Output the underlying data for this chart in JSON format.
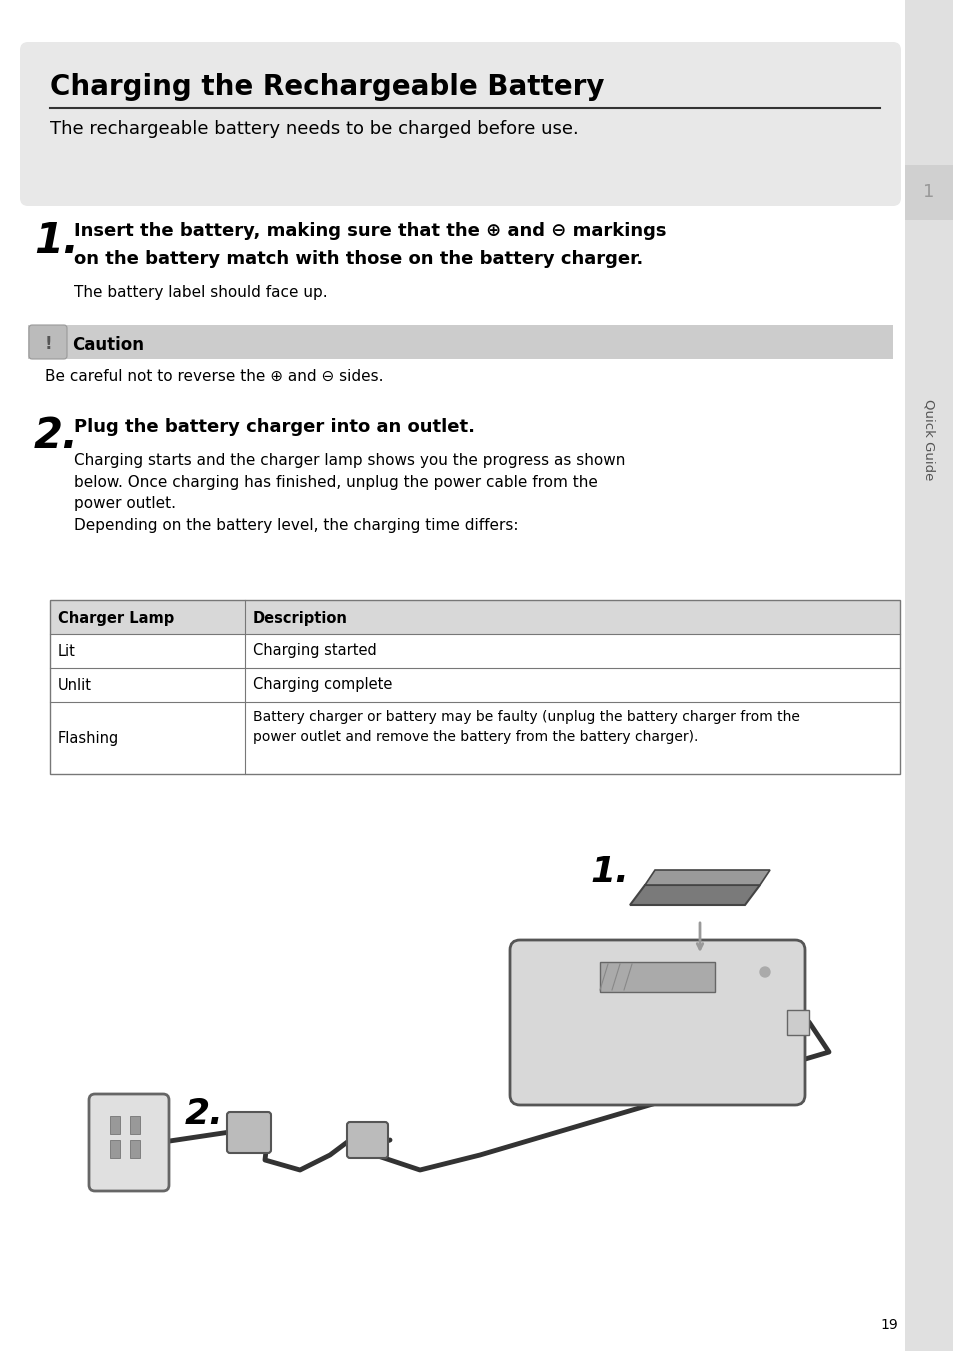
{
  "title": "Charging the Rechargeable Battery",
  "subtitle": "The rechargeable battery needs to be charged before use.",
  "step1_num": "1.",
  "step1_bold_line1": "Insert the battery, making sure that the ⊕ and ⊖ markings",
  "step1_bold_line2": "on the battery match with those on the battery charger.",
  "step1_sub": "The battery label should face up.",
  "caution_title": "Caution",
  "caution_text": "Be careful not to reverse the ⊕ and ⊖ sides.",
  "step2_num": "2.",
  "step2_bold": "Plug the battery charger into an outlet.",
  "step2_body": "Charging starts and the charger lamp shows you the progress as shown\nbelow. Once charging has finished, unplug the power cable from the\npower outlet.\nDepending on the battery level, the charging time differs:",
  "table_headers": [
    "Charger Lamp",
    "Description"
  ],
  "table_rows": [
    [
      "Lit",
      "Charging started"
    ],
    [
      "Unlit",
      "Charging complete"
    ],
    [
      "Flashing",
      "Battery charger or battery may be faulty (unplug the battery charger from the\npower outlet and remove the battery from the battery charger)."
    ]
  ],
  "sidebar_text": "Quick Guide",
  "sidebar_num": "1",
  "page_num": "19",
  "bg_header_color": "#e8e8e8",
  "bg_white": "#ffffff",
  "caution_bg": "#cccccc",
  "table_header_bg": "#d8d8d8",
  "table_border": "#777777",
  "sidebar_bg": "#e0e0e0",
  "sidebar_tab_bg": "#d0d0d0",
  "text_color": "#000000"
}
